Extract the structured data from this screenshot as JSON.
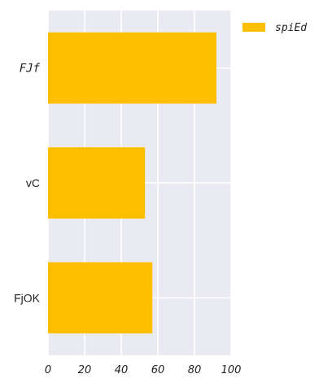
{
  "chart_data": {
    "type": "bar",
    "orientation": "horizontal",
    "categories": [
      "FJf",
      "vC",
      "FjOK"
    ],
    "category_styles": [
      "italic",
      "normal",
      "normal"
    ],
    "series": [
      {
        "name": "spiEd",
        "values": [
          92,
          53,
          57
        ],
        "color": "#FFBF00"
      }
    ],
    "xlim": [
      0,
      100
    ],
    "xticks": [
      0,
      20,
      40,
      60,
      80,
      100
    ],
    "grid": true,
    "legend_position": "top-right",
    "background": "#EAEAF2",
    "grid_color": "#FFFFFF"
  }
}
